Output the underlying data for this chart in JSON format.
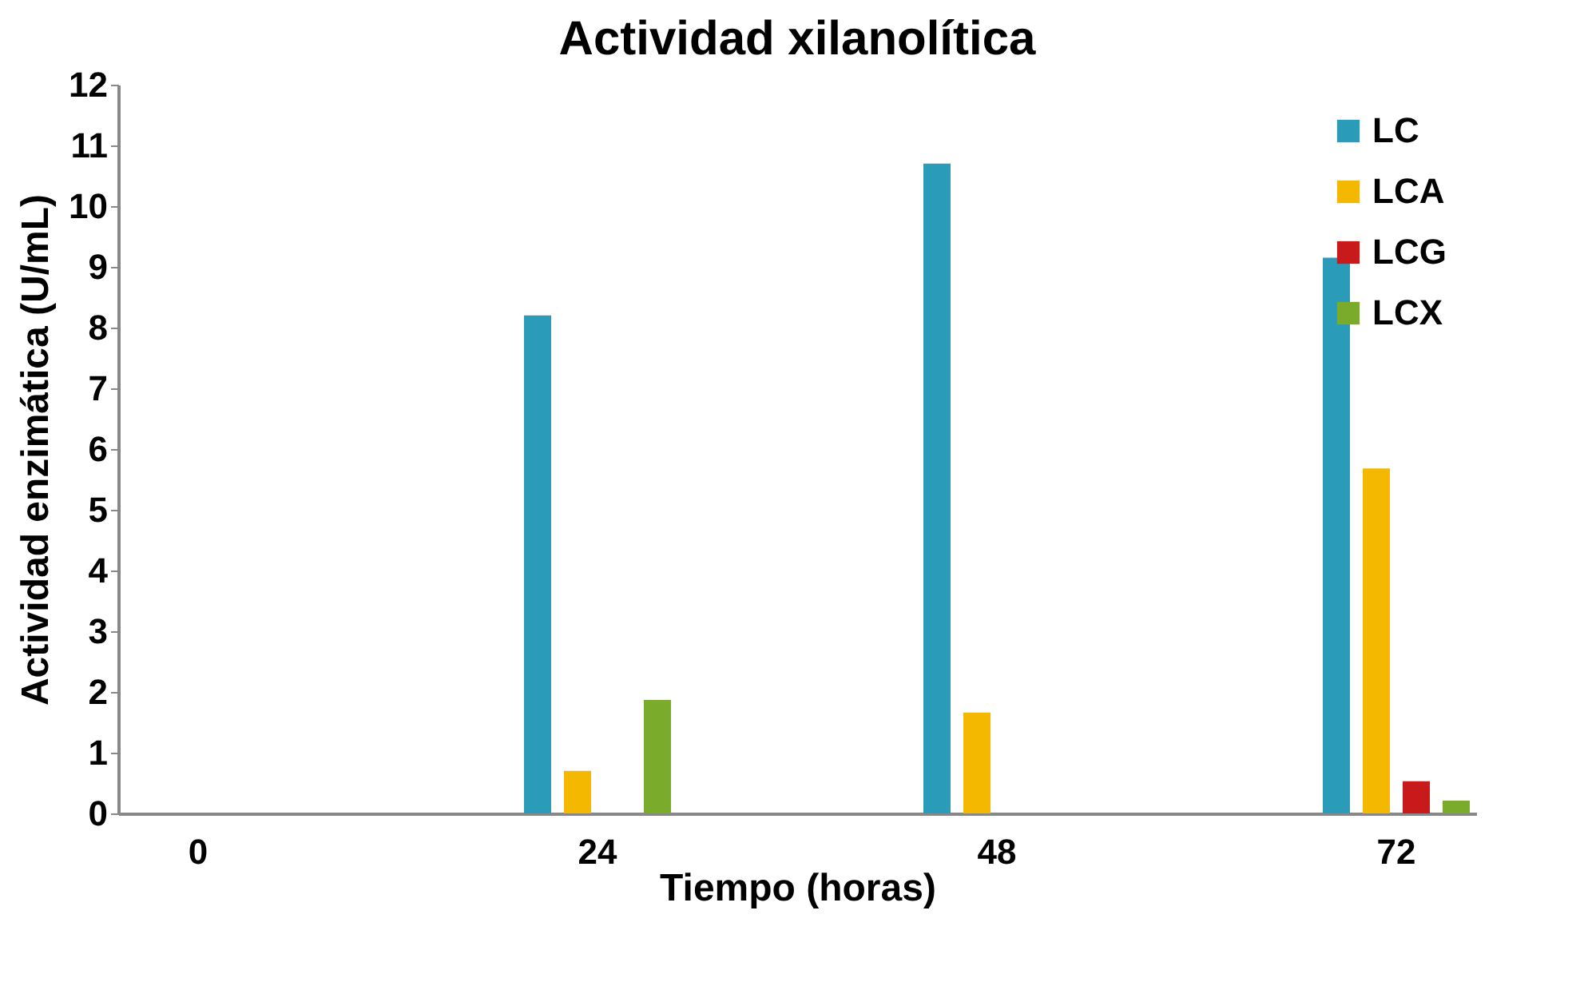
{
  "chart_data": {
    "type": "bar",
    "title": "Actividad xilanolítica",
    "xlabel": "Tiempo (horas)",
    "ylabel": "Actividad enzimática (U/mL)",
    "categories": [
      "0",
      "24",
      "48",
      "72"
    ],
    "series": [
      {
        "name": "LC",
        "color": "#2a9bb8",
        "values": [
          0,
          8.2,
          10.7,
          9.15
        ]
      },
      {
        "name": "LCA",
        "color": "#f5b800",
        "values": [
          0,
          0.7,
          1.66,
          5.68
        ]
      },
      {
        "name": "LCG",
        "color": "#c81a1a",
        "values": [
          0,
          0,
          0,
          0.53
        ]
      },
      {
        "name": "LCX",
        "color": "#7aab2a",
        "values": [
          0,
          1.87,
          0,
          0.21
        ]
      }
    ],
    "ylim": [
      0,
      12
    ],
    "yticks": [
      0,
      1,
      2,
      3,
      4,
      5,
      6,
      7,
      8,
      9,
      10,
      11,
      12
    ],
    "grid": false,
    "legend": "top right"
  }
}
